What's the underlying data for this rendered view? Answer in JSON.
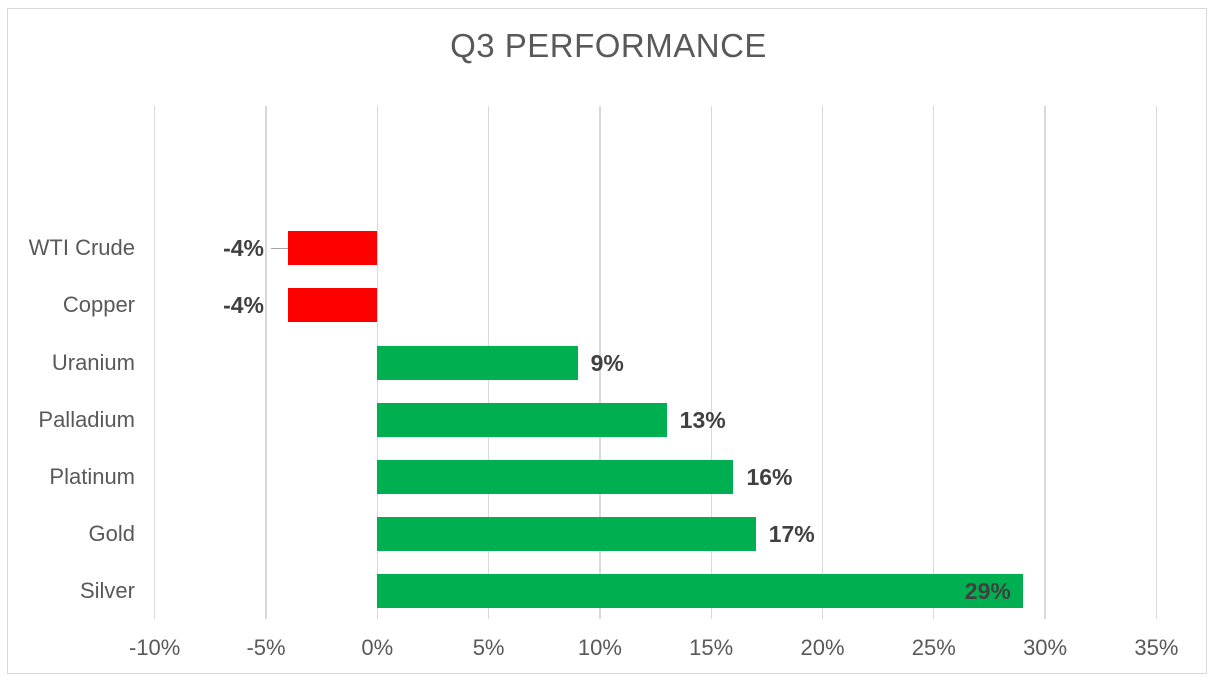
{
  "chart_data": {
    "type": "bar",
    "orientation": "horizontal",
    "title": "Q3 PERFORMANCE",
    "categories": [
      "WTI Crude",
      "Copper",
      "Uranium",
      "Palladium",
      "Platinum",
      "Gold",
      "Silver"
    ],
    "values": [
      -4,
      -4,
      9,
      13,
      16,
      17,
      29
    ],
    "value_labels": [
      "-4%",
      "-4%",
      "9%",
      "13%",
      "16%",
      "17%",
      "29%"
    ],
    "label_positions": [
      "outside-end",
      "outside-end",
      "outside-end",
      "outside-end",
      "outside-end",
      "outside-end",
      "inside-end"
    ],
    "x_ticks": [
      {
        "value": -10,
        "label": "-10%"
      },
      {
        "value": -5,
        "label": "-5%"
      },
      {
        "value": 0,
        "label": "0%"
      },
      {
        "value": 5,
        "label": "5%"
      },
      {
        "value": 10,
        "label": "10%"
      },
      {
        "value": 15,
        "label": "15%"
      },
      {
        "value": 20,
        "label": "20%"
      },
      {
        "value": 25,
        "label": "25%"
      },
      {
        "value": 30,
        "label": "30%"
      },
      {
        "value": 35,
        "label": "35%"
      }
    ],
    "xlim": [
      -10,
      35
    ],
    "grid": true,
    "legend": "none",
    "leader_line_category": "WTI Crude",
    "colors": {
      "positive_bar": "#00B050",
      "negative_bar": "#FF0000",
      "gridline": "#D9D9D9",
      "frame_border": "#D9D9D9",
      "title_text": "#595959",
      "axis_text": "#595959",
      "data_label_text": "#404040",
      "leader_line": "#A6A6A6"
    }
  }
}
